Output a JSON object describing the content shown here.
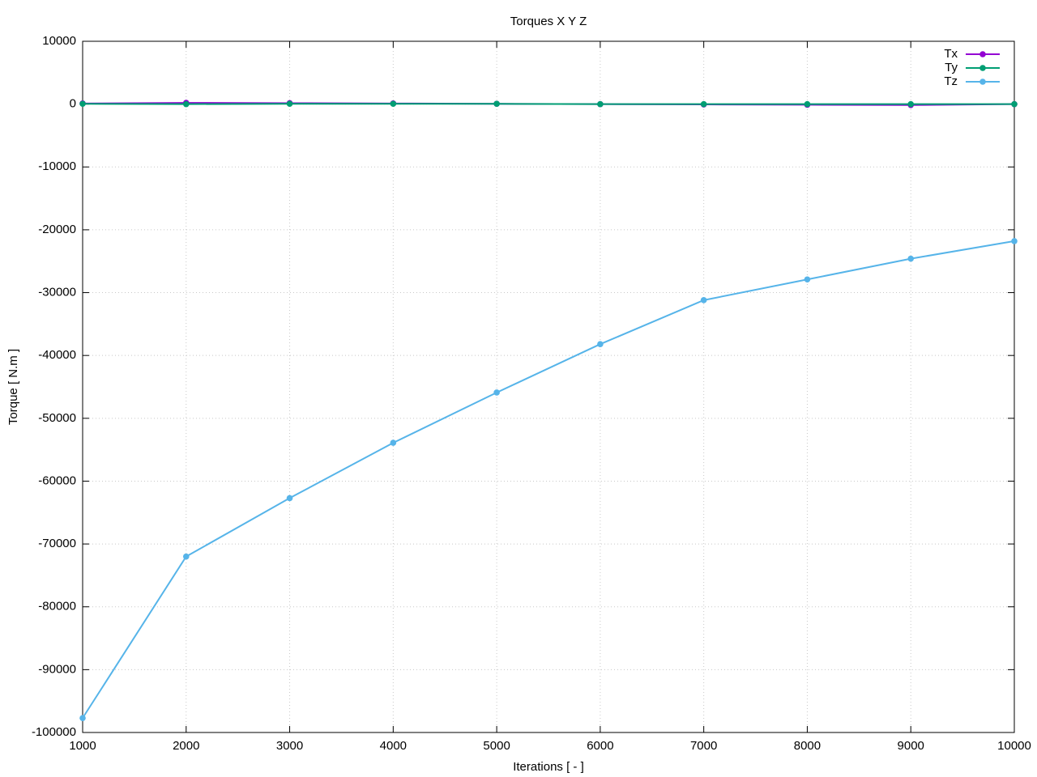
{
  "chart_data": {
    "type": "line",
    "title": "Torques X Y Z",
    "x_label": "Iterations [ - ]",
    "y_label": "Torque [ N.m ]",
    "x": [
      1000,
      2000,
      3000,
      4000,
      5000,
      6000,
      7000,
      8000,
      9000,
      10000
    ],
    "series": [
      {
        "name": "Tx",
        "color": "#9400d3",
        "values": [
          100,
          200,
          150,
          100,
          50,
          0,
          -50,
          -100,
          -150,
          0
        ]
      },
      {
        "name": "Ty",
        "color": "#009e73",
        "values": [
          50,
          0,
          50,
          50,
          50,
          0,
          0,
          0,
          0,
          0
        ]
      },
      {
        "name": "Tz",
        "color": "#56b4e9",
        "values": [
          -97700,
          -72000,
          -62700,
          -53900,
          -45900,
          -38200,
          -31200,
          -27900,
          -24600,
          -21800
        ]
      }
    ],
    "xlim": [
      1000,
      10000
    ],
    "ylim": [
      -100000,
      10000
    ],
    "xticks": [
      1000,
      2000,
      3000,
      4000,
      5000,
      6000,
      7000,
      8000,
      9000,
      10000
    ],
    "yticks": [
      10000,
      0,
      -10000,
      -20000,
      -30000,
      -40000,
      -50000,
      -60000,
      -70000,
      -80000,
      -90000,
      -100000
    ],
    "grid": true,
    "legend": "top-right",
    "markers": true
  }
}
